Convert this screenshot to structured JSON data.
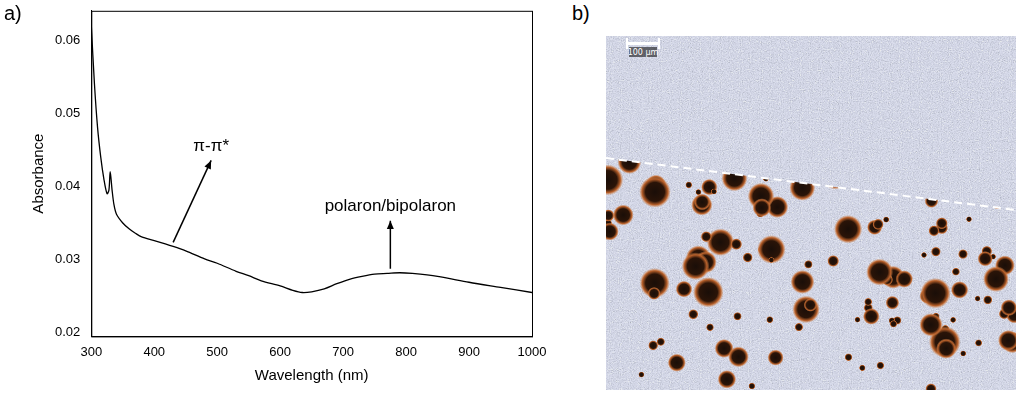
{
  "chart_data": {
    "type": "line",
    "label": "a)",
    "x_label": "Wavelength (nm)",
    "y_label": "Absorbance",
    "x": [
      300,
      305,
      310,
      315,
      320,
      325,
      328,
      330,
      333,
      336,
      340,
      350,
      360,
      370,
      380,
      400,
      430,
      450,
      480,
      500,
      530,
      550,
      570,
      600,
      620,
      635,
      650,
      670,
      690,
      710,
      730,
      750,
      770,
      790,
      810,
      850,
      900,
      950,
      1000
    ],
    "values": [
      0.062,
      0.054,
      0.048,
      0.044,
      0.041,
      0.039,
      0.0395,
      0.042,
      0.0395,
      0.0375,
      0.0362,
      0.035,
      0.0342,
      0.0336,
      0.0331,
      0.0326,
      0.0318,
      0.0312,
      0.0301,
      0.0295,
      0.0284,
      0.0278,
      0.0271,
      0.0264,
      0.0258,
      0.0255,
      0.0256,
      0.026,
      0.0267,
      0.0273,
      0.0277,
      0.028,
      0.0281,
      0.0282,
      0.0281,
      0.0277,
      0.0269,
      0.0262,
      0.0255
    ],
    "color": "#000000",
    "xlim": [
      300,
      1000
    ],
    "xticks": [
      300,
      400,
      500,
      600,
      700,
      800,
      900,
      1000
    ],
    "ylim": [
      0.0195,
      0.064
    ],
    "yticks": [
      0.02,
      0.03,
      0.04,
      0.05,
      0.06
    ],
    "grid": false,
    "annotations": [
      {
        "text": "π-π*",
        "x": 430,
        "y": 0.0318
      },
      {
        "text": "polaron/bipolaron",
        "x": 775,
        "y": 0.0282
      }
    ]
  },
  "image": {
    "label": "b)",
    "scale_bar": "100 µm"
  }
}
